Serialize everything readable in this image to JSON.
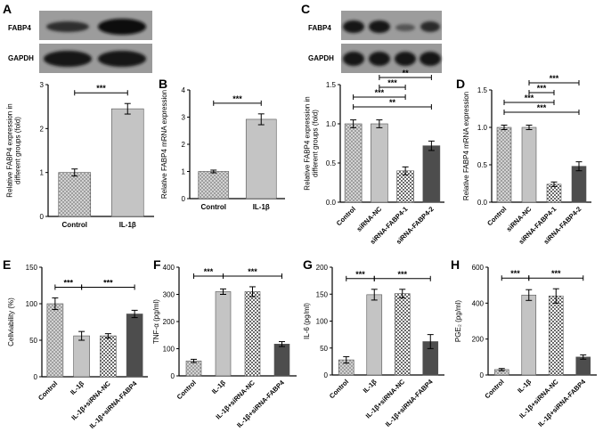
{
  "panel_letters": {
    "A": "A",
    "B": "B",
    "C": "C",
    "D": "D",
    "E": "E",
    "F": "F",
    "G": "G",
    "H": "H"
  },
  "blots": {
    "A": {
      "rows": [
        "FABP4",
        "GAPDH"
      ]
    },
    "C": {
      "rows": [
        "FABP4",
        "GAPDH"
      ]
    }
  },
  "colors": {
    "bar_control": "#c4c4c4",
    "bar_il1b": "#a9a9a9",
    "bar_dark": "#4d4d4d",
    "axis": "#000000"
  },
  "chart_data": [
    {
      "panel": "A",
      "type": "bar",
      "categories": [
        "Control",
        "IL-1β"
      ],
      "values": [
        1.0,
        2.45
      ],
      "errors": [
        0.08,
        0.12
      ],
      "ylabel": "Relative FABP4 expression in\ndifferent groups (fold)",
      "ylim": [
        0,
        3
      ],
      "yticks": [
        0,
        1,
        2,
        3
      ],
      "patterns": [
        "dots",
        "solid"
      ],
      "tick_rotation": 0,
      "significance": [
        {
          "from": 0,
          "to": 1,
          "label": "***"
        }
      ]
    },
    {
      "panel": "B",
      "type": "bar",
      "categories": [
        "Control",
        "IL-1β"
      ],
      "values": [
        1.0,
        2.92
      ],
      "errors": [
        0.05,
        0.2
      ],
      "ylabel": "Relative FABP4 mRNA expression",
      "ylim": [
        0,
        4
      ],
      "yticks": [
        0,
        1,
        2,
        3,
        4
      ],
      "patterns": [
        "dots",
        "solid"
      ],
      "tick_rotation": 0,
      "significance": [
        {
          "from": 0,
          "to": 1,
          "label": "***"
        }
      ]
    },
    {
      "panel": "C",
      "type": "bar",
      "categories": [
        "Control",
        "siRNA-NC",
        "siRNA-FABP4-1",
        "siRNA-FABP4-2"
      ],
      "values": [
        1.0,
        1.0,
        0.4,
        0.72
      ],
      "errors": [
        0.05,
        0.05,
        0.05,
        0.06
      ],
      "ylabel": "Relative FABP4 expression in\ndifferent groups (fold)",
      "ylim": [
        0,
        1.5
      ],
      "yticks": [
        0,
        0.5,
        1.0,
        1.5
      ],
      "patterns": [
        "dots",
        "solid",
        "checker",
        "dark"
      ],
      "tick_rotation": -45,
      "significance": [
        {
          "from": 1,
          "to": 3,
          "label": "**"
        },
        {
          "from": 1,
          "to": 2,
          "label": "***"
        },
        {
          "from": 0,
          "to": 2,
          "label": "***"
        },
        {
          "from": 0,
          "to": 3,
          "label": "**"
        }
      ]
    },
    {
      "panel": "D",
      "type": "bar",
      "categories": [
        "Control",
        "siRNA-NC",
        "siRNA-FABP4-1",
        "siRNA-FABP4-2"
      ],
      "values": [
        1.0,
        1.0,
        0.24,
        0.48
      ],
      "errors": [
        0.03,
        0.03,
        0.03,
        0.06
      ],
      "ylabel": "Relative FABP4 mRNA expression",
      "ylim": [
        0,
        1.5
      ],
      "yticks": [
        0,
        0.5,
        1.0,
        1.5
      ],
      "patterns": [
        "dots",
        "solid",
        "checker",
        "dark"
      ],
      "tick_rotation": -45,
      "significance": [
        {
          "from": 1,
          "to": 3,
          "label": "***"
        },
        {
          "from": 1,
          "to": 2,
          "label": "***"
        },
        {
          "from": 0,
          "to": 2,
          "label": "***"
        },
        {
          "from": 0,
          "to": 3,
          "label": "***"
        }
      ]
    },
    {
      "panel": "E",
      "type": "bar",
      "categories": [
        "Control",
        "IL-1β",
        "IL-1β+siRNA-NC",
        "IL-1β+siRNA-FABP4"
      ],
      "values": [
        100,
        56,
        56,
        86
      ],
      "errors": [
        8,
        6,
        3,
        5
      ],
      "ylabel": "Cellviability (%)",
      "ylim": [
        0,
        150
      ],
      "yticks": [
        0,
        50,
        100,
        150
      ],
      "patterns": [
        "dots",
        "solid",
        "checker",
        "dark"
      ],
      "tick_rotation": -45,
      "significance": [
        {
          "from": 0,
          "to": 1,
          "label": "***"
        },
        {
          "from": 1,
          "to": 3,
          "label": "***"
        }
      ]
    },
    {
      "panel": "F",
      "type": "bar",
      "categories": [
        "Control",
        "IL-1β",
        "IL-1β+siRNA-NC",
        "IL-1β+siRNA-FABP4"
      ],
      "values": [
        55,
        310,
        310,
        117
      ],
      "errors": [
        6,
        10,
        18,
        9
      ],
      "ylabel": "TNF-α (pg/ml)",
      "ylim": [
        0,
        400
      ],
      "yticks": [
        0,
        100,
        200,
        300,
        400
      ],
      "patterns": [
        "dots",
        "solid",
        "checker",
        "dark"
      ],
      "tick_rotation": -45,
      "significance": [
        {
          "from": 0,
          "to": 1,
          "label": "***"
        },
        {
          "from": 1,
          "to": 3,
          "label": "***"
        }
      ]
    },
    {
      "panel": "G",
      "type": "bar",
      "categories": [
        "Control",
        "IL-1β",
        "IL-1β+siRNA-NC",
        "IL-1β+siRNA-FABP4"
      ],
      "values": [
        28,
        149,
        151,
        62
      ],
      "errors": [
        6,
        10,
        8,
        13
      ],
      "ylabel": "IL-6 (pg/ml)",
      "ylim": [
        0,
        200
      ],
      "yticks": [
        0,
        50,
        100,
        150,
        200
      ],
      "patterns": [
        "dots",
        "solid",
        "checker",
        "dark"
      ],
      "tick_rotation": -45,
      "significance": [
        {
          "from": 0,
          "to": 1,
          "label": "***"
        },
        {
          "from": 1,
          "to": 3,
          "label": "***"
        }
      ]
    },
    {
      "panel": "H",
      "type": "bar",
      "categories": [
        "Control",
        "IL-1β",
        "IL-1β+siRNA-NC",
        "IL-1β+siRNA-FABP4"
      ],
      "values": [
        30,
        445,
        440,
        100
      ],
      "errors": [
        6,
        30,
        40,
        12
      ],
      "ylabel": "PGE₂ (pg/ml)",
      "ylim": [
        0,
        600
      ],
      "yticks": [
        0,
        200,
        400,
        600
      ],
      "patterns": [
        "dots",
        "solid",
        "checker",
        "dark"
      ],
      "tick_rotation": -45,
      "significance": [
        {
          "from": 0,
          "to": 1,
          "label": "***"
        },
        {
          "from": 1,
          "to": 3,
          "label": "***"
        }
      ]
    }
  ]
}
